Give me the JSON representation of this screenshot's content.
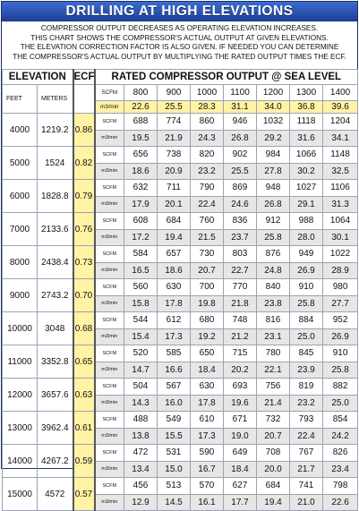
{
  "title": "DRILLING AT HIGH ELEVATIONS",
  "intro": [
    "COMPRESSOR OUTPUT DECREASES AS OPERATING ELEVATION INCREASES.",
    "THIS CHART SHOWS THE COMPRESSOR'S ACTUAL OUTPUT AT GIVEN ELEVATIONS.",
    "THE ELEVATION CORRECTION FACTOR IS ALSO GIVEN. IF NEEDED YOU CAN DETERMINE",
    "THE COMPRESSOR'S ACTUAL OUTPUT BY MULTIPLYING THE RATED OUTPUT TIMES THE ECF."
  ],
  "headers": {
    "elevation": "ELEVATION",
    "ecf": "ECF",
    "rated": "RATED COMPRESSOR OUTPUT @ SEA LEVEL",
    "feet": "FEET",
    "meters": "METERS",
    "unit_scfm": "SCFM",
    "unit_m3": "m3/min"
  },
  "rated_scfm": [
    "800",
    "900",
    "1000",
    "1100",
    "1200",
    "1300",
    "1400"
  ],
  "rated_m3": [
    "22.6",
    "25.5",
    "28.3",
    "31.1",
    "34.0",
    "36.8",
    "39.6"
  ],
  "rows": [
    {
      "feet": "4000",
      "meters": "1219.2",
      "ecf": "0.86",
      "scfm": [
        "688",
        "774",
        "860",
        "946",
        "1032",
        "1118",
        "1204"
      ],
      "m3": [
        "19.5",
        "21.9",
        "24.3",
        "26.8",
        "29.2",
        "31.6",
        "34.1"
      ]
    },
    {
      "feet": "5000",
      "meters": "1524",
      "ecf": "0.82",
      "scfm": [
        "656",
        "738",
        "820",
        "902",
        "984",
        "1066",
        "1148"
      ],
      "m3": [
        "18.6",
        "20.9",
        "23.2",
        "25.5",
        "27.8",
        "30.2",
        "32.5"
      ]
    },
    {
      "feet": "6000",
      "meters": "1828.8",
      "ecf": "0.79",
      "scfm": [
        "632",
        "711",
        "790",
        "869",
        "948",
        "1027",
        "1106"
      ],
      "m3": [
        "17.9",
        "20.1",
        "22.4",
        "24.6",
        "26.8",
        "29.1",
        "31.3"
      ]
    },
    {
      "feet": "7000",
      "meters": "2133.6",
      "ecf": "0.76",
      "scfm": [
        "608",
        "684",
        "760",
        "836",
        "912",
        "988",
        "1064"
      ],
      "m3": [
        "17.2",
        "19.4",
        "21.5",
        "23.7",
        "25.8",
        "28.0",
        "30.1"
      ]
    },
    {
      "feet": "8000",
      "meters": "2438.4",
      "ecf": "0.73",
      "scfm": [
        "584",
        "657",
        "730",
        "803",
        "876",
        "949",
        "1022"
      ],
      "m3": [
        "16.5",
        "18.6",
        "20.7",
        "22.7",
        "24.8",
        "26.9",
        "28.9"
      ]
    },
    {
      "feet": "9000",
      "meters": "2743.2",
      "ecf": "0.70",
      "scfm": [
        "560",
        "630",
        "700",
        "770",
        "840",
        "910",
        "980"
      ],
      "m3": [
        "15.8",
        "17.8",
        "19.8",
        "21.8",
        "23.8",
        "25.8",
        "27.7"
      ]
    },
    {
      "feet": "10000",
      "meters": "3048",
      "ecf": "0.68",
      "scfm": [
        "544",
        "612",
        "680",
        "748",
        "816",
        "884",
        "952"
      ],
      "m3": [
        "15.4",
        "17.3",
        "19.2",
        "21.2",
        "23.1",
        "25.0",
        "26.9"
      ]
    },
    {
      "feet": "11000",
      "meters": "3352.8",
      "ecf": "0.65",
      "scfm": [
        "520",
        "585",
        "650",
        "715",
        "780",
        "845",
        "910"
      ],
      "m3": [
        "14.7",
        "16.6",
        "18.4",
        "20.2",
        "22.1",
        "23.9",
        "25.8"
      ]
    },
    {
      "feet": "12000",
      "meters": "3657.6",
      "ecf": "0.63",
      "scfm": [
        "504",
        "567",
        "630",
        "693",
        "756",
        "819",
        "882"
      ],
      "m3": [
        "14.3",
        "16.0",
        "17.8",
        "19.6",
        "21.4",
        "23.2",
        "25.0"
      ]
    },
    {
      "feet": "13000",
      "meters": "3962.4",
      "ecf": "0.61",
      "scfm": [
        "488",
        "549",
        "610",
        "671",
        "732",
        "793",
        "854"
      ],
      "m3": [
        "13.8",
        "15.5",
        "17.3",
        "19.0",
        "20.7",
        "22.4",
        "24.2"
      ]
    },
    {
      "feet": "14000",
      "meters": "4267.2",
      "ecf": "0.59",
      "scfm": [
        "472",
        "531",
        "590",
        "649",
        "708",
        "767",
        "826"
      ],
      "m3": [
        "13.4",
        "15.0",
        "16.7",
        "18.4",
        "20.0",
        "21.7",
        "23.4"
      ]
    },
    {
      "feet": "15000",
      "meters": "4572",
      "ecf": "0.57",
      "scfm": [
        "456",
        "513",
        "570",
        "627",
        "684",
        "741",
        "798"
      ],
      "m3": [
        "12.9",
        "14.5",
        "16.1",
        "17.7",
        "19.4",
        "21.0",
        "22.6"
      ]
    }
  ]
}
